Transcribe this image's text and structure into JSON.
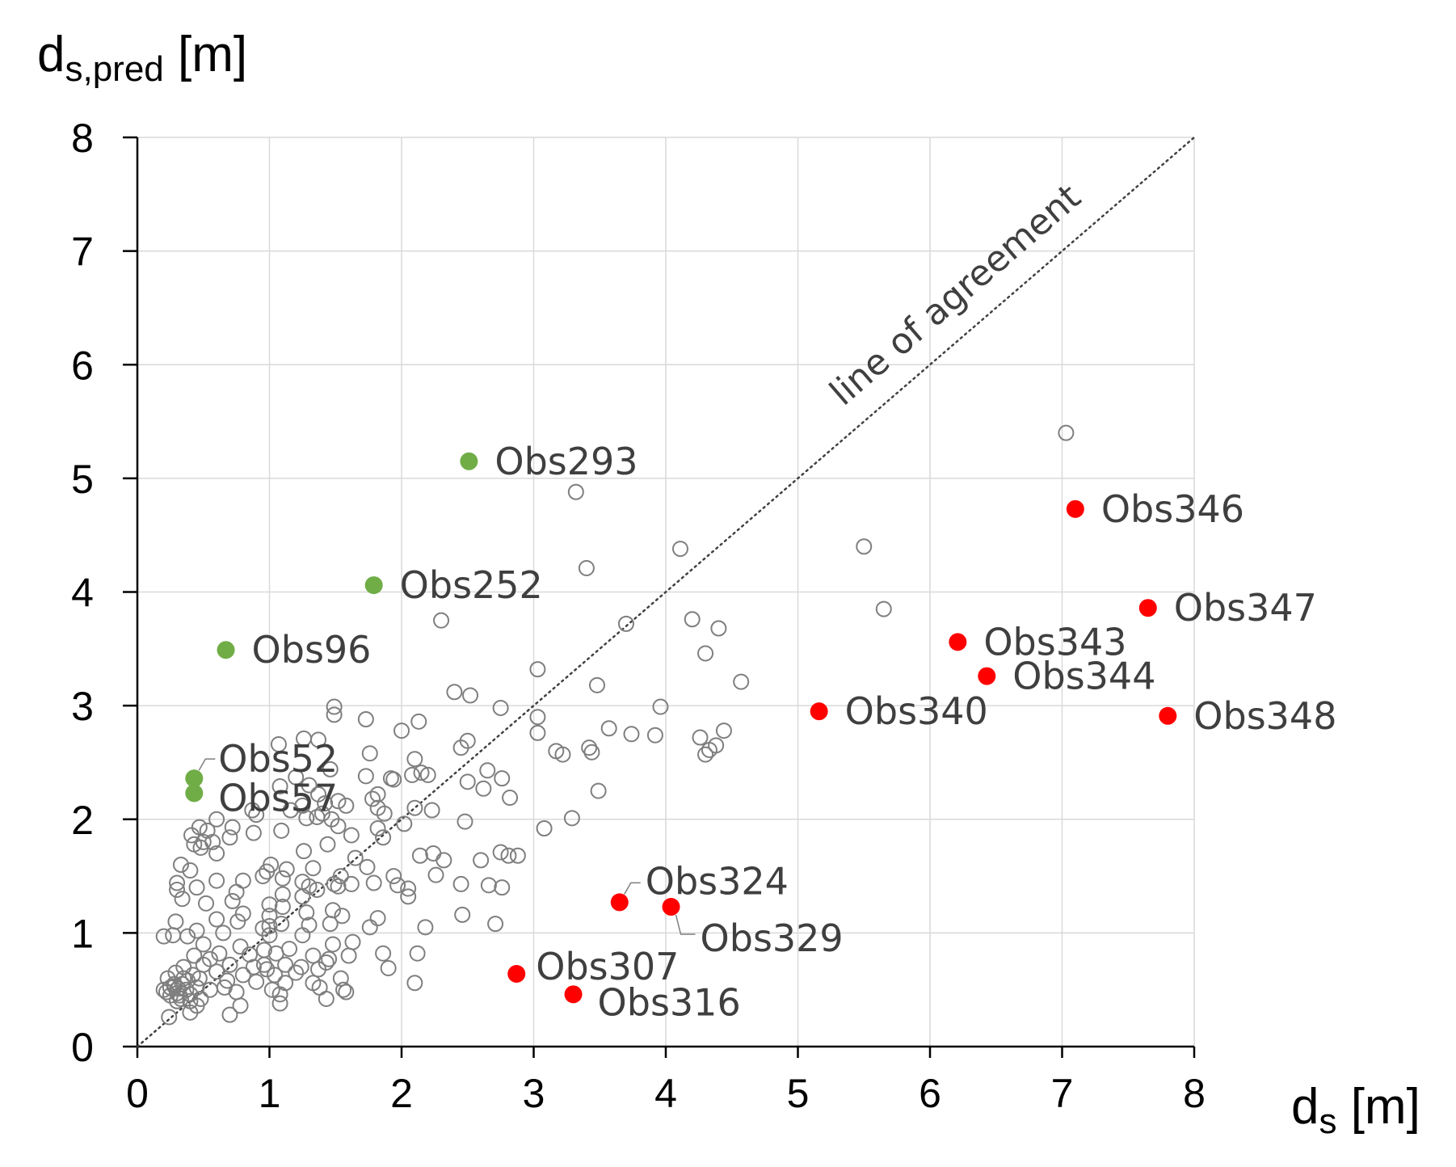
{
  "chart_data": {
    "type": "scatter",
    "xlabel": {
      "main": "d",
      "sub": "s",
      "unit": " [m]"
    },
    "ylabel": {
      "main": "d",
      "sub": "s,pred",
      "unit": " [m]"
    },
    "xlim": [
      0,
      8
    ],
    "ylim": [
      0,
      8
    ],
    "x_ticks": [
      "0",
      "1",
      "2",
      "3",
      "4",
      "5",
      "6",
      "7",
      "8"
    ],
    "y_ticks": [
      "0",
      "1",
      "2",
      "3",
      "4",
      "5",
      "6",
      "7",
      "8"
    ],
    "grid": true,
    "reference_line": {
      "label": "line of agreement",
      "from": [
        0,
        0
      ],
      "to": [
        8,
        8
      ]
    },
    "colors": {
      "other": "#7f7f7f",
      "over": "#70ad47",
      "under": "#ff0000",
      "label": "#3f3f3f"
    },
    "series": [
      {
        "style": "open-circle",
        "points": [
          [
            7.03,
            5.4
          ],
          [
            3.32,
            4.88
          ],
          [
            4.11,
            4.38
          ],
          [
            5.5,
            4.4
          ],
          [
            3.4,
            4.21
          ],
          [
            5.65,
            3.85
          ],
          [
            2.3,
            3.75
          ],
          [
            3.7,
            3.72
          ],
          [
            4.2,
            3.76
          ],
          [
            4.4,
            3.68
          ],
          [
            4.3,
            3.46
          ],
          [
            3.03,
            3.32
          ],
          [
            4.57,
            3.21
          ],
          [
            3.48,
            3.18
          ],
          [
            2.4,
            3.12
          ],
          [
            2.52,
            3.09
          ],
          [
            1.49,
            2.99
          ],
          [
            3.96,
            2.99
          ],
          [
            2.75,
            2.98
          ],
          [
            1.49,
            2.92
          ],
          [
            3.03,
            2.9
          ],
          [
            1.73,
            2.88
          ],
          [
            2.13,
            2.86
          ],
          [
            3.57,
            2.8
          ],
          [
            4.44,
            2.78
          ],
          [
            2.0,
            2.78
          ],
          [
            3.03,
            2.76
          ],
          [
            3.74,
            2.75
          ],
          [
            3.92,
            2.74
          ],
          [
            4.26,
            2.72
          ],
          [
            1.26,
            2.71
          ],
          [
            1.37,
            2.7
          ],
          [
            2.5,
            2.69
          ],
          [
            1.07,
            2.66
          ],
          [
            4.38,
            2.65
          ],
          [
            2.45,
            2.63
          ],
          [
            3.42,
            2.63
          ],
          [
            4.33,
            2.61
          ],
          [
            3.17,
            2.6
          ],
          [
            3.44,
            2.59
          ],
          [
            1.76,
            2.58
          ],
          [
            3.22,
            2.57
          ],
          [
            4.3,
            2.57
          ],
          [
            2.1,
            2.53
          ],
          [
            2.65,
            2.43
          ],
          [
            1.46,
            2.44
          ],
          [
            2.15,
            2.41
          ],
          [
            2.08,
            2.39
          ],
          [
            2.2,
            2.39
          ],
          [
            1.73,
            2.38
          ],
          [
            1.2,
            2.37
          ],
          [
            1.92,
            2.36
          ],
          [
            1.94,
            2.35
          ],
          [
            2.76,
            2.36
          ],
          [
            2.5,
            2.33
          ],
          [
            1.3,
            2.3
          ],
          [
            1.08,
            2.29
          ],
          [
            2.62,
            2.27
          ],
          [
            3.49,
            2.25
          ],
          [
            1.82,
            2.22
          ],
          [
            1.37,
            2.22
          ],
          [
            2.82,
            2.19
          ],
          [
            1.78,
            2.18
          ],
          [
            1.52,
            2.16
          ],
          [
            1.42,
            2.14
          ],
          [
            1.25,
            2.12
          ],
          [
            1.58,
            2.12
          ],
          [
            1.82,
            2.1
          ],
          [
            2.1,
            2.1
          ],
          [
            1.16,
            2.08
          ],
          [
            2.23,
            2.08
          ],
          [
            1.87,
            2.05
          ],
          [
            1.4,
            2.05
          ],
          [
            0.87,
            2.08
          ],
          [
            0.9,
            2.04
          ],
          [
            1.36,
            2.02
          ],
          [
            1.28,
            2.01
          ],
          [
            3.29,
            2.01
          ],
          [
            1.47,
            2.0
          ],
          [
            2.48,
            1.98
          ],
          [
            0.6,
            2.0
          ],
          [
            2.02,
            1.96
          ],
          [
            1.52,
            1.94
          ],
          [
            0.47,
            1.93
          ],
          [
            1.82,
            1.92
          ],
          [
            3.08,
            1.92
          ],
          [
            0.72,
            1.93
          ],
          [
            0.53,
            1.9
          ],
          [
            1.09,
            1.9
          ],
          [
            0.88,
            1.88
          ],
          [
            0.41,
            1.86
          ],
          [
            1.62,
            1.86
          ],
          [
            0.7,
            1.84
          ],
          [
            1.86,
            1.84
          ],
          [
            0.5,
            1.8
          ],
          [
            0.57,
            1.8
          ],
          [
            0.43,
            1.78
          ],
          [
            1.44,
            1.78
          ],
          [
            0.48,
            1.75
          ],
          [
            1.26,
            1.72
          ],
          [
            2.24,
            1.7
          ],
          [
            2.75,
            1.71
          ],
          [
            2.81,
            1.68
          ],
          [
            2.88,
            1.68
          ],
          [
            0.6,
            1.7
          ],
          [
            2.14,
            1.68
          ],
          [
            2.32,
            1.64
          ],
          [
            2.6,
            1.64
          ],
          [
            1.65,
            1.66
          ],
          [
            0.33,
            1.6
          ],
          [
            1.01,
            1.6
          ],
          [
            1.74,
            1.58
          ],
          [
            1.13,
            1.56
          ],
          [
            1.33,
            1.57
          ],
          [
            0.4,
            1.55
          ],
          [
            0.98,
            1.54
          ],
          [
            0.95,
            1.5
          ],
          [
            1.54,
            1.5
          ],
          [
            2.26,
            1.51
          ],
          [
            1.94,
            1.5
          ],
          [
            0.3,
            1.44
          ],
          [
            0.6,
            1.46
          ],
          [
            0.8,
            1.46
          ],
          [
            1.1,
            1.48
          ],
          [
            1.25,
            1.45
          ],
          [
            1.49,
            1.43
          ],
          [
            1.79,
            1.44
          ],
          [
            1.62,
            1.43
          ],
          [
            1.3,
            1.41
          ],
          [
            1.52,
            1.41
          ],
          [
            1.36,
            1.38
          ],
          [
            0.45,
            1.4
          ],
          [
            0.3,
            1.38
          ],
          [
            2.05,
            1.39
          ],
          [
            2.66,
            1.42
          ],
          [
            2.76,
            1.4
          ],
          [
            2.45,
            1.43
          ],
          [
            1.97,
            1.42
          ],
          [
            0.75,
            1.36
          ],
          [
            1.1,
            1.34
          ],
          [
            2.05,
            1.32
          ],
          [
            1.25,
            1.32
          ],
          [
            0.34,
            1.3
          ],
          [
            0.72,
            1.28
          ],
          [
            0.52,
            1.26
          ],
          [
            1.0,
            1.25
          ],
          [
            1.1,
            1.23
          ],
          [
            1.48,
            1.2
          ],
          [
            1.28,
            1.18
          ],
          [
            0.8,
            1.17
          ],
          [
            1.0,
            1.15
          ],
          [
            1.55,
            1.15
          ],
          [
            2.46,
            1.16
          ],
          [
            1.82,
            1.13
          ],
          [
            0.6,
            1.12
          ],
          [
            0.29,
            1.1
          ],
          [
            0.76,
            1.1
          ],
          [
            1.09,
            1.08
          ],
          [
            1.3,
            1.07
          ],
          [
            1.0,
            1.06
          ],
          [
            1.46,
            1.08
          ],
          [
            2.18,
            1.05
          ],
          [
            2.71,
            1.08
          ],
          [
            1.76,
            1.05
          ],
          [
            0.95,
            1.04
          ],
          [
            0.45,
            1.02
          ],
          [
            0.65,
            1.0
          ],
          [
            0.2,
            0.97
          ],
          [
            0.27,
            0.98
          ],
          [
            1.0,
            0.98
          ],
          [
            1.25,
            0.98
          ],
          [
            0.38,
            0.97
          ],
          [
            1.48,
            0.9
          ],
          [
            0.5,
            0.9
          ],
          [
            1.63,
            0.92
          ],
          [
            0.78,
            0.88
          ],
          [
            0.96,
            0.85
          ],
          [
            1.15,
            0.86
          ],
          [
            1.05,
            0.82
          ],
          [
            1.33,
            0.8
          ],
          [
            1.6,
            0.8
          ],
          [
            1.86,
            0.82
          ],
          [
            2.12,
            0.82
          ],
          [
            0.43,
            0.8
          ],
          [
            0.62,
            0.82
          ],
          [
            0.85,
            0.81
          ],
          [
            0.55,
            0.77
          ],
          [
            1.45,
            0.77
          ],
          [
            0.96,
            0.72
          ],
          [
            1.12,
            0.72
          ],
          [
            1.43,
            0.74
          ],
          [
            0.88,
            0.7
          ],
          [
            0.35,
            0.7
          ],
          [
            0.5,
            0.72
          ],
          [
            0.7,
            0.72
          ],
          [
            1.24,
            0.7
          ],
          [
            1.37,
            0.68
          ],
          [
            1.9,
            0.69
          ],
          [
            0.98,
            0.68
          ],
          [
            0.29,
            0.65
          ],
          [
            0.42,
            0.63
          ],
          [
            0.6,
            0.66
          ],
          [
            0.8,
            0.63
          ],
          [
            1.04,
            0.63
          ],
          [
            1.2,
            0.65
          ],
          [
            1.54,
            0.6
          ],
          [
            0.68,
            0.58
          ],
          [
            0.23,
            0.6
          ],
          [
            0.38,
            0.58
          ],
          [
            0.47,
            0.6
          ],
          [
            0.9,
            0.57
          ],
          [
            1.12,
            0.56
          ],
          [
            1.33,
            0.56
          ],
          [
            2.1,
            0.56
          ],
          [
            0.25,
            0.52
          ],
          [
            0.28,
            0.53
          ],
          [
            0.31,
            0.51
          ],
          [
            0.34,
            0.55
          ],
          [
            0.37,
            0.5
          ],
          [
            0.45,
            0.52
          ],
          [
            0.55,
            0.5
          ],
          [
            0.66,
            0.52
          ],
          [
            0.75,
            0.48
          ],
          [
            1.02,
            0.5
          ],
          [
            1.38,
            0.52
          ],
          [
            1.56,
            0.5
          ],
          [
            0.22,
            0.48
          ],
          [
            0.25,
            0.45
          ],
          [
            0.3,
            0.47
          ],
          [
            0.33,
            0.42
          ],
          [
            0.4,
            0.46
          ],
          [
            1.08,
            0.46
          ],
          [
            1.58,
            0.48
          ],
          [
            0.3,
            0.4
          ],
          [
            0.4,
            0.4
          ],
          [
            0.48,
            0.42
          ],
          [
            1.43,
            0.42
          ],
          [
            1.08,
            0.38
          ],
          [
            0.45,
            0.36
          ],
          [
            0.78,
            0.36
          ],
          [
            0.4,
            0.3
          ],
          [
            0.7,
            0.28
          ],
          [
            0.24,
            0.26
          ],
          [
            0.35,
            0.6
          ],
          [
            0.28,
            0.55
          ],
          [
            0.2,
            0.5
          ],
          [
            0.32,
            0.45
          ]
        ]
      },
      {
        "style": "filled-green",
        "points": [
          {
            "x": 2.51,
            "y": 5.15,
            "label": "Obs293"
          },
          {
            "x": 1.79,
            "y": 4.06,
            "label": "Obs252"
          },
          {
            "x": 0.67,
            "y": 3.49,
            "label": "Obs96"
          },
          {
            "x": 0.43,
            "y": 2.36,
            "label": "Obs52"
          },
          {
            "x": 0.43,
            "y": 2.23,
            "label": "Obs57"
          }
        ]
      },
      {
        "style": "filled-red",
        "points": [
          {
            "x": 7.1,
            "y": 4.73,
            "label": "Obs346"
          },
          {
            "x": 7.65,
            "y": 3.86,
            "label": "Obs347"
          },
          {
            "x": 6.21,
            "y": 3.56,
            "label": "Obs343"
          },
          {
            "x": 6.43,
            "y": 3.26,
            "label": "Obs344"
          },
          {
            "x": 5.16,
            "y": 2.95,
            "label": "Obs340"
          },
          {
            "x": 7.8,
            "y": 2.91,
            "label": "Obs348"
          },
          {
            "x": 3.65,
            "y": 1.27,
            "label": "Obs324"
          },
          {
            "x": 4.04,
            "y": 1.23,
            "label": "Obs329"
          },
          {
            "x": 2.87,
            "y": 0.64,
            "label": "Obs307"
          },
          {
            "x": 3.3,
            "y": 0.46,
            "label": "Obs316"
          }
        ]
      }
    ]
  }
}
